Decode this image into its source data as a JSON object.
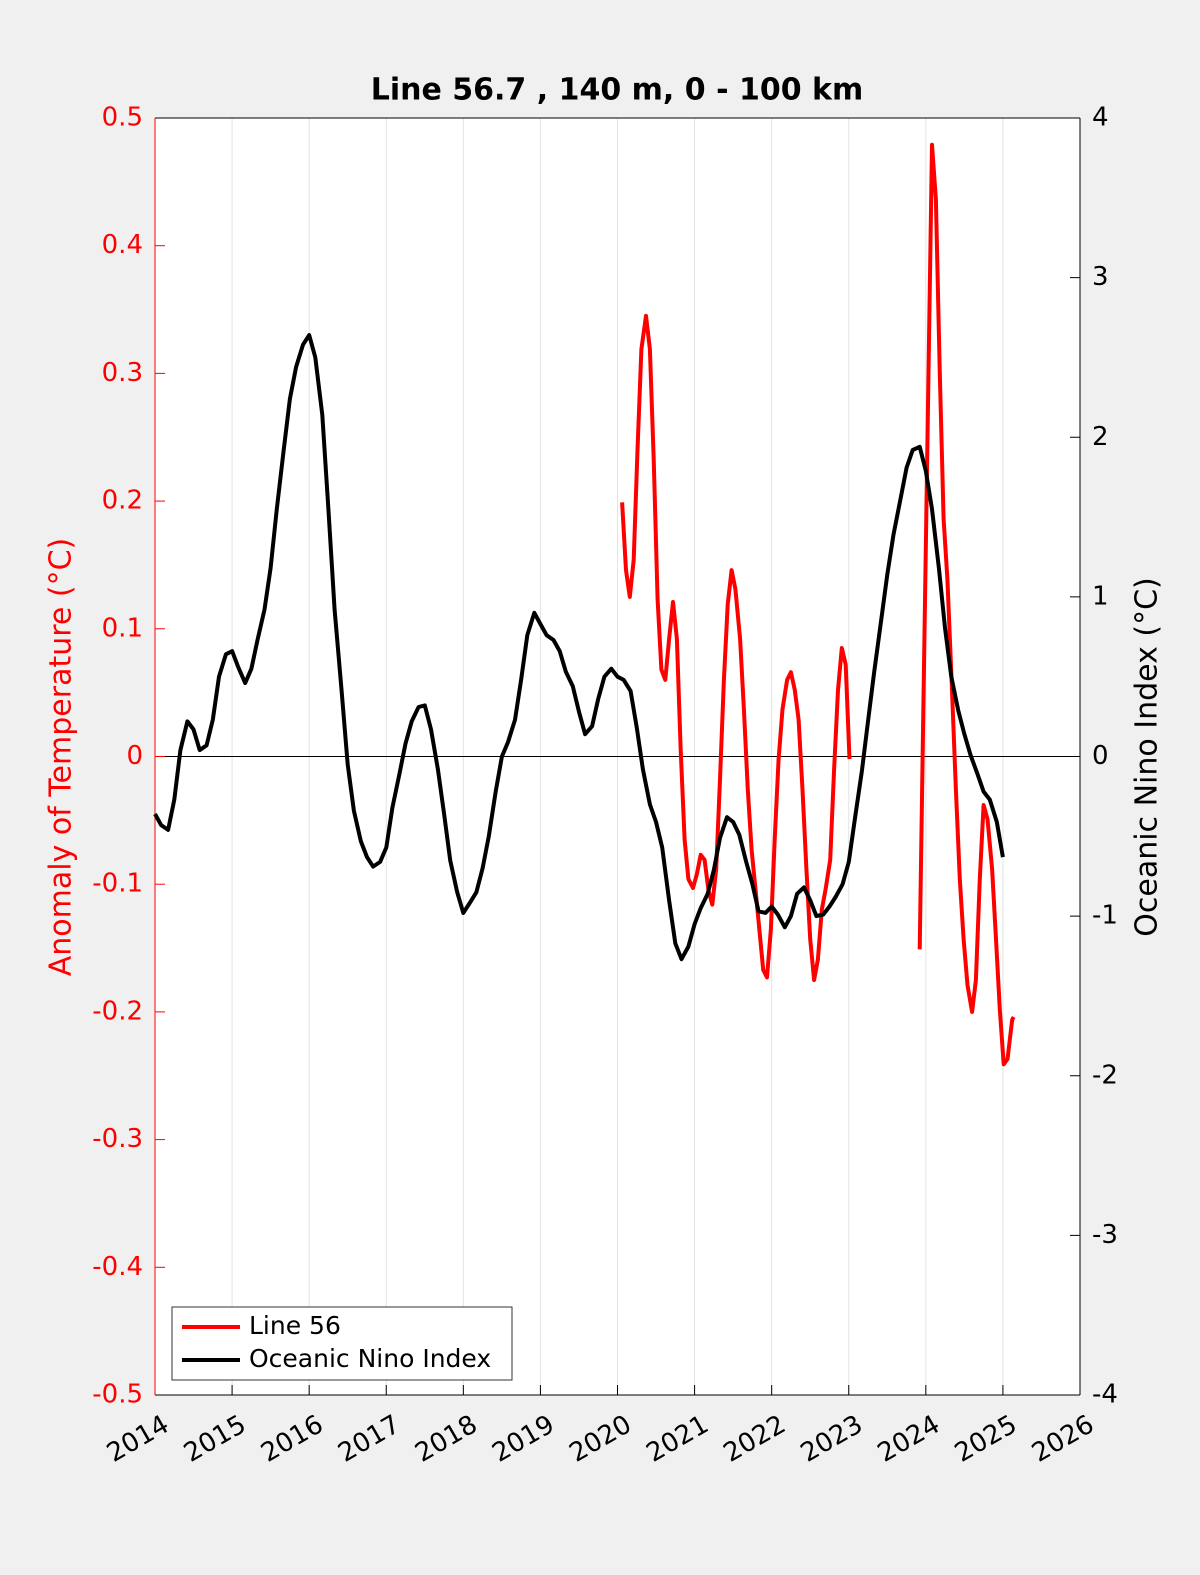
{
  "chart_data": {
    "type": "line",
    "title": "Line 56.7 , 140 m, 0 - 100 km",
    "ylabel": "Anomaly of Temperature (°C)",
    "y2label": "Oceanic Nino Index (°C)",
    "xlim": [
      2014,
      2026
    ],
    "xticks": [
      2014,
      2015,
      2016,
      2017,
      2018,
      2019,
      2020,
      2021,
      2022,
      2023,
      2024,
      2025,
      2026
    ],
    "ylim": [
      -0.5,
      0.5
    ],
    "yticks": [
      -0.5,
      -0.4,
      -0.3,
      -0.2,
      -0.1,
      0,
      0.1,
      0.2,
      0.3,
      0.4,
      0.5
    ],
    "y2lim": [
      -4,
      4
    ],
    "y2ticks": [
      -4,
      -3,
      -2,
      -1,
      0,
      1,
      2,
      3,
      4
    ],
    "grid": "x",
    "legend": "lower left",
    "series": [
      {
        "name": "Line 56",
        "color": "#ff0000",
        "axis": "y",
        "x": [
          2020.06,
          2020.11,
          2020.16,
          2020.21,
          2020.26,
          2020.31,
          2020.37,
          2020.42,
          2020.47,
          2020.52,
          2020.57,
          2020.62,
          2020.67,
          2020.72,
          2020.77,
          2020.82,
          2020.87,
          2020.92,
          2020.98,
          2021.03,
          2021.08,
          2021.13,
          2021.18,
          2021.23,
          2021.28,
          2021.33,
          2021.38,
          2021.43,
          2021.48,
          2021.53,
          2021.59,
          2021.64,
          2021.69,
          2021.74,
          2021.79,
          2021.84,
          2021.89,
          2021.94,
          2021.99,
          2022.04,
          2022.09,
          2022.14,
          2022.2,
          2022.25,
          2022.3,
          2022.35,
          2022.4,
          2022.45,
          2022.5,
          2022.55,
          2022.6,
          2022.65,
          2022.7,
          2022.76,
          2022.81,
          2022.86,
          2022.91,
          2022.96,
          2023.01,
          2023.5,
          2023.92,
          2023.97,
          2024.03,
          2024.08,
          2024.13,
          2024.18,
          2024.23,
          2024.28,
          2024.34,
          2024.39,
          2024.44,
          2024.49,
          2024.54,
          2024.6,
          2024.65,
          2024.7,
          2024.75,
          2024.8,
          2024.86,
          2024.91,
          2024.96,
          2025.01,
          2025.06,
          2025.12,
          2025.14
        ],
        "values": [
          0.199,
          0.146,
          0.125,
          0.154,
          0.24,
          0.319,
          0.345,
          0.319,
          0.233,
          0.123,
          0.068,
          0.06,
          0.092,
          0.121,
          0.092,
          0.005,
          -0.065,
          -0.096,
          -0.103,
          -0.092,
          -0.077,
          -0.081,
          -0.105,
          -0.116,
          -0.088,
          -0.018,
          0.06,
          0.119,
          0.146,
          0.131,
          0.092,
          0.037,
          -0.026,
          -0.073,
          -0.104,
          -0.135,
          -0.167,
          -0.173,
          -0.135,
          -0.065,
          -0.002,
          0.037,
          0.06,
          0.066,
          0.052,
          0.029,
          -0.026,
          -0.088,
          -0.143,
          -0.175,
          -0.159,
          -0.12,
          -0.104,
          -0.081,
          -0.01,
          0.052,
          0.085,
          0.072,
          -0.002,
          null,
          -0.151,
          0.045,
          0.28,
          0.479,
          0.436,
          0.303,
          0.186,
          0.139,
          0.052,
          -0.026,
          -0.096,
          -0.143,
          -0.179,
          -0.2,
          -0.175,
          -0.096,
          -0.038,
          -0.049,
          -0.088,
          -0.143,
          -0.198,
          -0.241,
          -0.237,
          -0.206,
          -0.204
        ]
      },
      {
        "name": "Oceanic Nino Index",
        "color": "#000000",
        "axis": "y2",
        "x": [
          2014,
          2014.08,
          2014.17,
          2014.25,
          2014.33,
          2014.42,
          2014.5,
          2014.58,
          2014.67,
          2014.75,
          2014.83,
          2014.92,
          2015,
          2015.08,
          2015.17,
          2015.25,
          2015.33,
          2015.42,
          2015.5,
          2015.58,
          2015.67,
          2015.75,
          2015.83,
          2015.92,
          2016,
          2016.08,
          2016.17,
          2016.25,
          2016.33,
          2016.42,
          2016.5,
          2016.58,
          2016.67,
          2016.75,
          2016.83,
          2016.92,
          2017,
          2017.08,
          2017.17,
          2017.25,
          2017.33,
          2017.42,
          2017.5,
          2017.58,
          2017.67,
          2017.75,
          2017.83,
          2017.92,
          2018,
          2018.08,
          2018.17,
          2018.25,
          2018.33,
          2018.42,
          2018.5,
          2018.58,
          2018.67,
          2018.75,
          2018.83,
          2018.92,
          2019,
          2019.08,
          2019.17,
          2019.25,
          2019.33,
          2019.42,
          2019.5,
          2019.58,
          2019.67,
          2019.75,
          2019.83,
          2019.92,
          2020,
          2020.08,
          2020.17,
          2020.25,
          2020.33,
          2020.42,
          2020.5,
          2020.58,
          2020.67,
          2020.75,
          2020.83,
          2020.92,
          2021,
          2021.08,
          2021.17,
          2021.25,
          2021.33,
          2021.42,
          2021.5,
          2021.58,
          2021.67,
          2021.75,
          2021.83,
          2021.92,
          2022,
          2022.08,
          2022.17,
          2022.25,
          2022.33,
          2022.42,
          2022.5,
          2022.58,
          2022.67,
          2022.75,
          2022.83,
          2022.92,
          2023,
          2023.08,
          2023.17,
          2023.25,
          2023.33,
          2023.42,
          2023.5,
          2023.58,
          2023.67,
          2023.75,
          2023.83,
          2023.92,
          2024,
          2024.08,
          2024.17,
          2024.25,
          2024.33,
          2024.42,
          2024.5,
          2024.58,
          2024.67,
          2024.75,
          2024.83,
          2024.92,
          2025
        ],
        "values": [
          -0.36,
          -0.43,
          -0.46,
          -0.27,
          0.04,
          0.22,
          0.17,
          0.04,
          0.07,
          0.23,
          0.5,
          0.64,
          0.66,
          0.56,
          0.46,
          0.55,
          0.73,
          0.92,
          1.18,
          1.55,
          1.92,
          2.24,
          2.44,
          2.58,
          2.64,
          2.5,
          2.14,
          1.55,
          0.92,
          0.42,
          -0.05,
          -0.34,
          -0.53,
          -0.63,
          -0.69,
          -0.66,
          -0.57,
          -0.32,
          -0.11,
          0.08,
          0.22,
          0.31,
          0.32,
          0.17,
          -0.08,
          -0.36,
          -0.65,
          -0.85,
          -0.98,
          -0.92,
          -0.85,
          -0.7,
          -0.5,
          -0.22,
          0.0,
          0.09,
          0.23,
          0.48,
          0.76,
          0.9,
          0.83,
          0.76,
          0.73,
          0.66,
          0.53,
          0.44,
          0.28,
          0.14,
          0.19,
          0.36,
          0.5,
          0.55,
          0.5,
          0.48,
          0.41,
          0.18,
          -0.08,
          -0.3,
          -0.41,
          -0.57,
          -0.9,
          -1.17,
          -1.27,
          -1.19,
          -1.05,
          -0.95,
          -0.86,
          -0.71,
          -0.51,
          -0.38,
          -0.41,
          -0.49,
          -0.66,
          -0.8,
          -0.97,
          -0.98,
          -0.94,
          -0.99,
          -1.07,
          -1.0,
          -0.86,
          -0.82,
          -0.9,
          -1.0,
          -0.99,
          -0.94,
          -0.88,
          -0.8,
          -0.66,
          -0.39,
          -0.09,
          0.22,
          0.53,
          0.85,
          1.14,
          1.39,
          1.61,
          1.81,
          1.92,
          1.94,
          1.79,
          1.55,
          1.18,
          0.8,
          0.5,
          0.29,
          0.14,
          0.01,
          -0.11,
          -0.22,
          -0.27,
          -0.41,
          -0.63
        ]
      }
    ]
  }
}
